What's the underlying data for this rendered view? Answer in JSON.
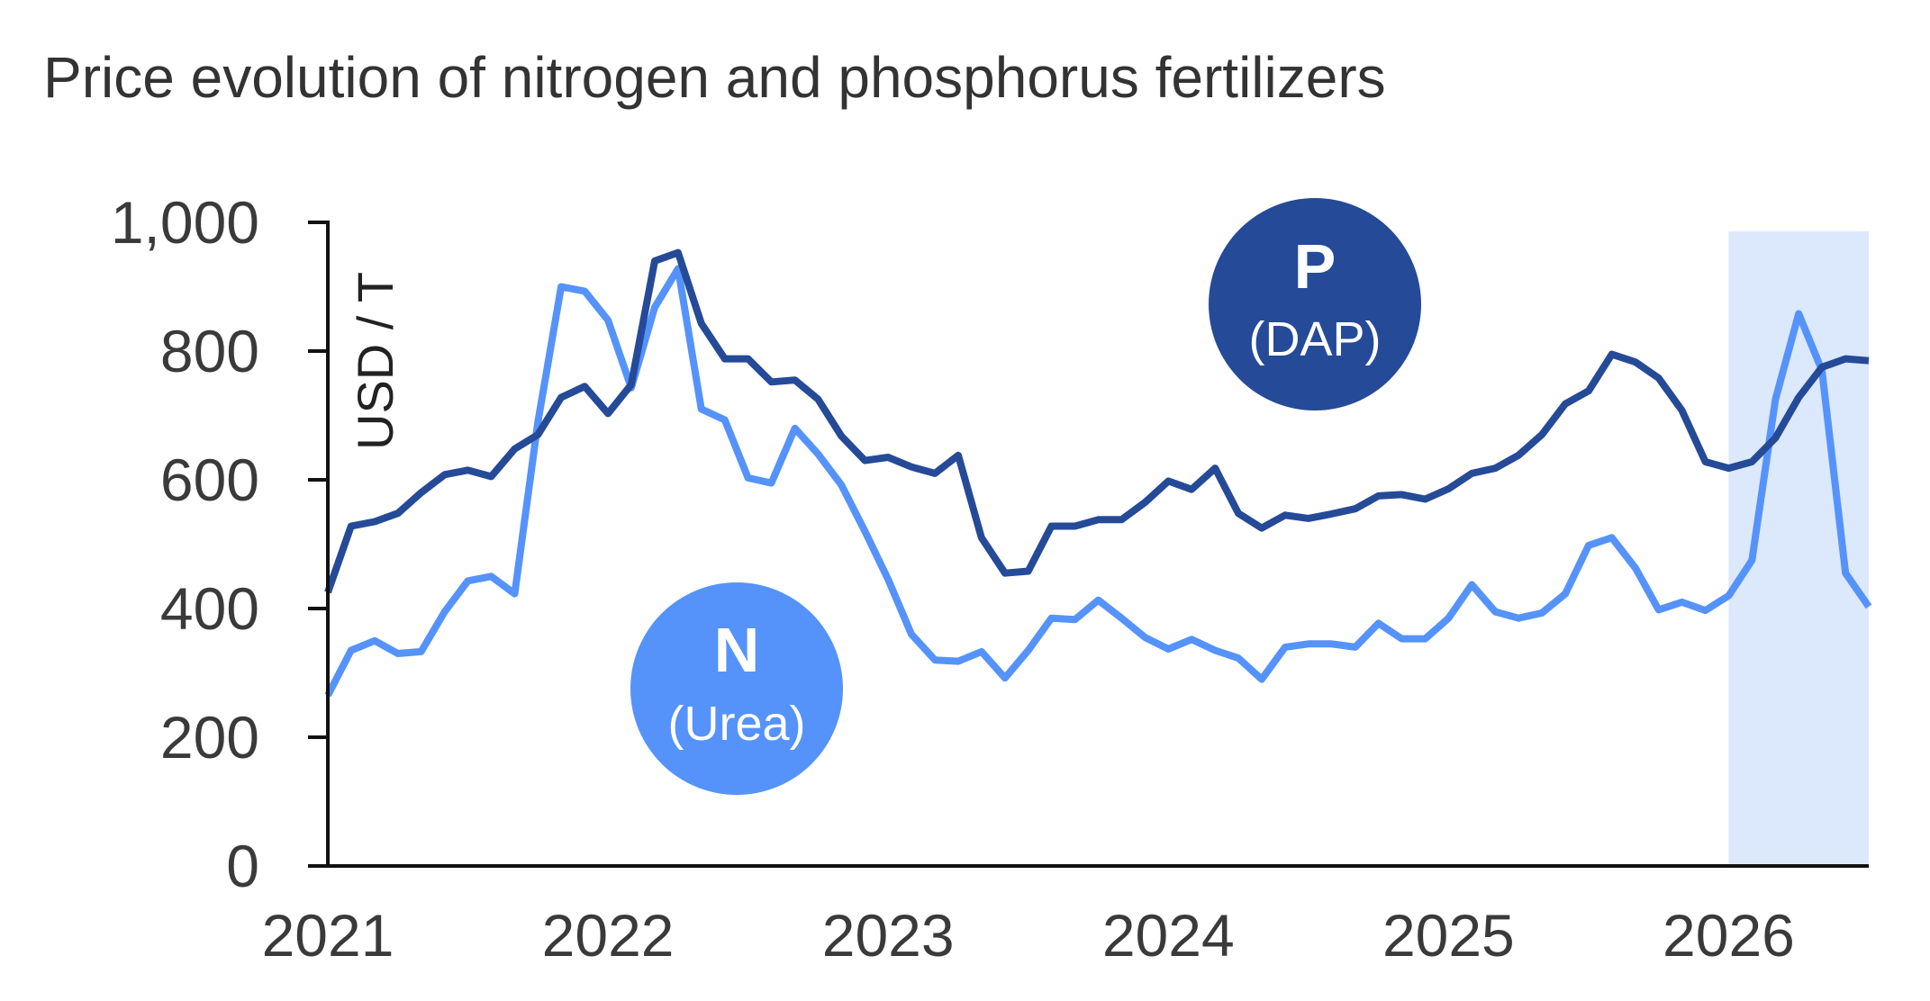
{
  "chart_data": {
    "type": "line",
    "title": "Price evolution of nitrogen and phosphorus fertilizers",
    "ylabel": "USD / T",
    "xlabel": "",
    "x_ticks": [
      "2021",
      "2022",
      "2023",
      "2024",
      "2025",
      "2026"
    ],
    "y_ticks": [
      "0",
      "200",
      "400",
      "600",
      "800",
      "1,000"
    ],
    "xlim": [
      2021.0,
      2026.5
    ],
    "ylim": [
      0,
      1000
    ],
    "grid": false,
    "highlight_region": {
      "x": [
        2026.0,
        2026.5
      ],
      "color": "#dce8fc"
    },
    "series": [
      {
        "name": "N",
        "label_letter": "N",
        "label_sub": "(Urea)",
        "color": "#5593fb",
        "x": [
          2021.0,
          2021.083,
          2021.167,
          2021.25,
          2021.333,
          2021.417,
          2021.5,
          2021.583,
          2021.667,
          2021.75,
          2021.833,
          2021.917,
          2022.0,
          2022.083,
          2022.167,
          2022.25,
          2022.333,
          2022.417,
          2022.5,
          2022.583,
          2022.667,
          2022.75,
          2022.833,
          2022.917,
          2023.0,
          2023.083,
          2023.167,
          2023.25,
          2023.333,
          2023.417,
          2023.5,
          2023.583,
          2023.667,
          2023.75,
          2023.833,
          2023.917,
          2024.0,
          2024.083,
          2024.167,
          2024.25,
          2024.333,
          2024.417,
          2024.5,
          2024.583,
          2024.667,
          2024.75,
          2024.833,
          2024.917,
          2025.0,
          2025.083,
          2025.167,
          2025.25,
          2025.333,
          2025.417,
          2025.5,
          2025.583,
          2025.667,
          2025.75,
          2025.833,
          2025.917,
          2026.0,
          2026.083,
          2026.167,
          2026.25,
          2026.333,
          2026.417,
          2026.5
        ],
        "values": [
          265,
          335,
          350,
          330,
          333,
          395,
          443,
          450,
          423,
          690,
          900,
          893,
          848,
          743,
          868,
          928,
          710,
          693,
          603,
          595,
          680,
          640,
          592,
          520,
          445,
          360,
          320,
          318,
          333,
          292,
          335,
          385,
          383,
          413,
          385,
          355,
          337,
          352,
          335,
          323,
          290,
          340,
          345,
          345,
          340,
          377,
          353,
          353,
          385,
          437,
          395,
          385,
          393,
          423,
          498,
          510,
          463,
          398,
          410,
          397,
          420,
          475,
          725,
          858,
          770,
          455,
          403
        ]
      },
      {
        "name": "P",
        "label_letter": "P",
        "label_sub": "(DAP)",
        "color": "#254a98",
        "x": [
          2021.0,
          2021.083,
          2021.167,
          2021.25,
          2021.333,
          2021.417,
          2021.5,
          2021.583,
          2021.667,
          2021.75,
          2021.833,
          2021.917,
          2022.0,
          2022.083,
          2022.167,
          2022.25,
          2022.333,
          2022.417,
          2022.5,
          2022.583,
          2022.667,
          2022.75,
          2022.833,
          2022.917,
          2023.0,
          2023.083,
          2023.167,
          2023.25,
          2023.333,
          2023.417,
          2023.5,
          2023.583,
          2023.667,
          2023.75,
          2023.833,
          2023.917,
          2024.0,
          2024.083,
          2024.167,
          2024.25,
          2024.333,
          2024.417,
          2024.5,
          2024.583,
          2024.667,
          2024.75,
          2024.833,
          2024.917,
          2025.0,
          2025.083,
          2025.167,
          2025.25,
          2025.333,
          2025.417,
          2025.5,
          2025.583,
          2025.667,
          2025.75,
          2025.833,
          2025.917,
          2026.0,
          2026.083,
          2026.167,
          2026.25,
          2026.333,
          2026.417,
          2026.5
        ],
        "values": [
          425,
          528,
          535,
          548,
          580,
          608,
          615,
          605,
          648,
          670,
          728,
          745,
          703,
          748,
          940,
          953,
          843,
          788,
          788,
          752,
          755,
          725,
          668,
          630,
          635,
          620,
          610,
          638,
          510,
          455,
          458,
          528,
          528,
          538,
          538,
          565,
          598,
          585,
          618,
          548,
          525,
          545,
          540,
          547,
          555,
          575,
          577,
          570,
          586,
          610,
          618,
          638,
          670,
          718,
          738,
          795,
          783,
          758,
          708,
          628,
          618,
          628,
          665,
          728,
          775,
          788,
          785
        ]
      }
    ]
  }
}
